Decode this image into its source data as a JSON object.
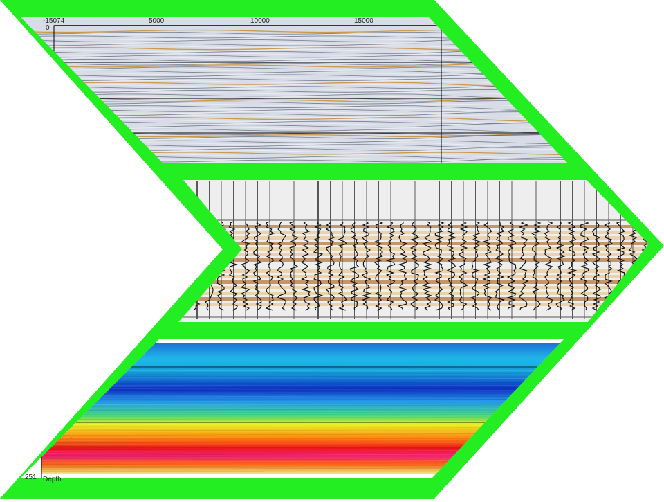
{
  "top_panel": {
    "x_axis_labels": [
      "-15074",
      "5000",
      "10000",
      "15000"
    ],
    "y_axis_label": "0"
  },
  "bottom_panel": {
    "y_axis_label": "251",
    "axis_title": "Depth"
  }
}
